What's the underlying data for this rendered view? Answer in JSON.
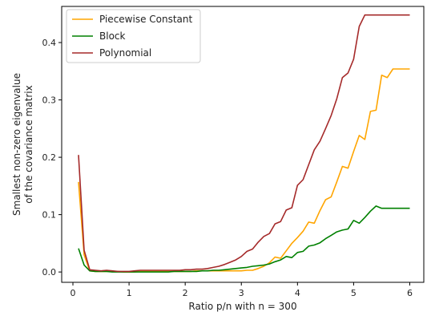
{
  "chart_data": {
    "type": "line",
    "title": "",
    "xlabel": "Ratio p/n with n = 300",
    "ylabel_lines": [
      "Smallest non-zero eigenvalue",
      "of the covariance matrix"
    ],
    "xlim": [
      -0.2,
      6.25
    ],
    "ylim": [
      -0.018,
      0.463
    ],
    "xticks": [
      0,
      1,
      2,
      3,
      4,
      5,
      6
    ],
    "yticks": [
      0.0,
      0.1,
      0.2,
      0.3,
      0.4
    ],
    "ytick_labels": [
      "0.0",
      "0.1",
      "0.2",
      "0.3",
      "0.4"
    ],
    "grid": false,
    "legend_position": "top-left",
    "x": [
      0.1,
      0.2,
      0.3,
      0.4,
      0.5,
      0.6,
      0.7,
      0.8,
      0.9,
      1.0,
      1.1,
      1.2,
      1.3,
      1.4,
      1.5,
      1.6,
      1.7,
      1.8,
      1.9,
      2.0,
      2.1,
      2.2,
      2.3,
      2.4,
      2.5,
      2.6,
      2.7,
      2.8,
      2.9,
      3.0,
      3.1,
      3.2,
      3.3,
      3.4,
      3.5,
      3.6,
      3.7,
      3.8,
      3.9,
      4.0,
      4.1,
      4.2,
      4.3,
      4.4,
      4.5,
      4.6,
      4.7,
      4.8,
      4.9,
      5.0,
      5.1,
      5.2,
      5.3,
      5.4,
      5.5,
      5.6,
      5.7,
      5.8,
      5.9,
      6.0
    ],
    "series": [
      {
        "name": "Piecewise Constant",
        "color": "#ffa500",
        "values": [
          0.157,
          0.03,
          0.002,
          0.001,
          0.001,
          0.001,
          0.001,
          0.001,
          0.0,
          0.0,
          0.0,
          0.001,
          0.001,
          0.001,
          0.001,
          0.001,
          0.001,
          0.001,
          0.001,
          0.001,
          0.001,
          0.002,
          0.002,
          0.002,
          0.002,
          0.002,
          0.002,
          0.002,
          0.002,
          0.002,
          0.003,
          0.003,
          0.006,
          0.01,
          0.016,
          0.026,
          0.024,
          0.037,
          0.05,
          0.06,
          0.071,
          0.087,
          0.085,
          0.107,
          0.126,
          0.131,
          0.157,
          0.184,
          0.181,
          0.21,
          0.238,
          0.231,
          0.28,
          0.282,
          0.343,
          0.339,
          0.354,
          0.354,
          0.354,
          0.354
        ]
      },
      {
        "name": "Block",
        "color": "#008000",
        "values": [
          0.041,
          0.012,
          0.002,
          0.001,
          0.001,
          0.001,
          0.0,
          0.0,
          0.0,
          0.0,
          0.0,
          0.0,
          0.0,
          0.0,
          0.0,
          0.0,
          0.0,
          0.001,
          0.001,
          0.001,
          0.001,
          0.001,
          0.002,
          0.002,
          0.003,
          0.003,
          0.004,
          0.005,
          0.006,
          0.007,
          0.008,
          0.01,
          0.011,
          0.012,
          0.014,
          0.018,
          0.021,
          0.027,
          0.025,
          0.034,
          0.036,
          0.045,
          0.047,
          0.051,
          0.058,
          0.064,
          0.07,
          0.073,
          0.075,
          0.09,
          0.085,
          0.095,
          0.106,
          0.115,
          0.111,
          0.111,
          0.111,
          0.111,
          0.111,
          0.111
        ]
      },
      {
        "name": "Polynomial",
        "color": "#a52a2a",
        "values": [
          0.204,
          0.038,
          0.004,
          0.003,
          0.002,
          0.003,
          0.002,
          0.001,
          0.001,
          0.001,
          0.002,
          0.003,
          0.003,
          0.003,
          0.003,
          0.003,
          0.003,
          0.003,
          0.003,
          0.004,
          0.004,
          0.005,
          0.005,
          0.006,
          0.008,
          0.01,
          0.013,
          0.017,
          0.021,
          0.027,
          0.036,
          0.04,
          0.052,
          0.062,
          0.067,
          0.084,
          0.088,
          0.108,
          0.112,
          0.151,
          0.161,
          0.187,
          0.213,
          0.228,
          0.25,
          0.273,
          0.302,
          0.339,
          0.347,
          0.371,
          0.428,
          0.448,
          0.448,
          0.448,
          0.448,
          0.448,
          0.448,
          0.448,
          0.448,
          0.448
        ]
      }
    ]
  }
}
